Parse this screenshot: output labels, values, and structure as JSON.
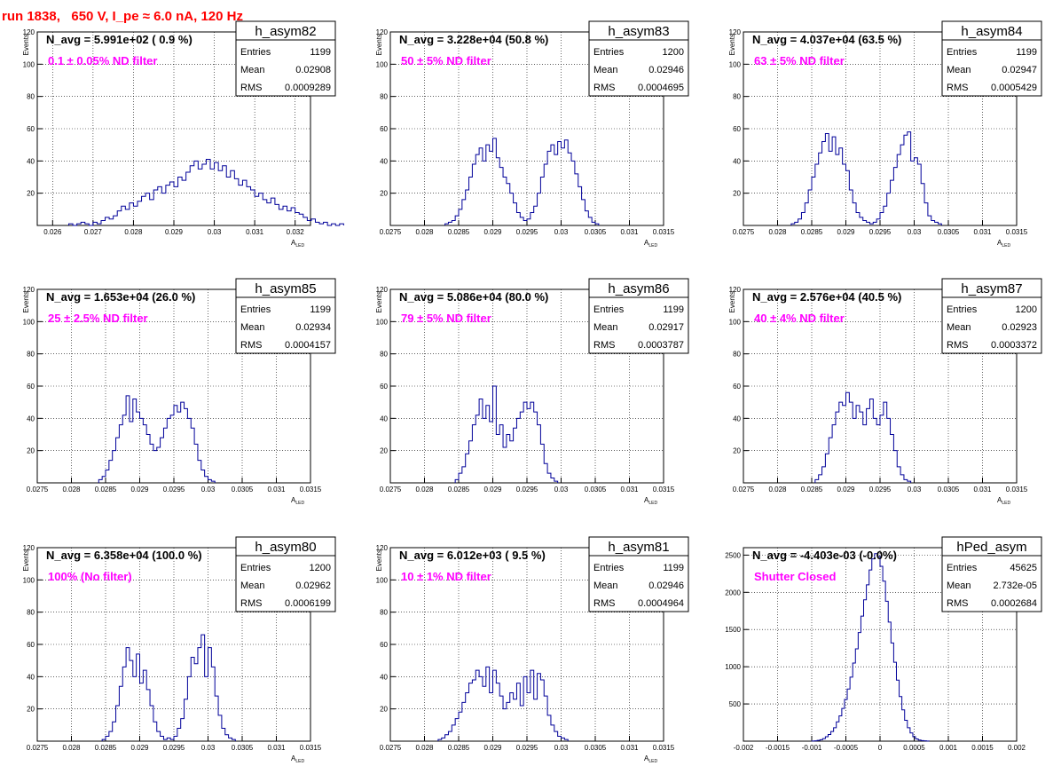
{
  "run_title": "run 1838,   650 V, I_pe ≈ 6.0 nA, 120 Hz",
  "stats_labels": {
    "entries": "Entries",
    "mean": "Mean",
    "rms": "RMS"
  },
  "colors": {
    "histogram": "#000099",
    "annotation": "#ff00ff",
    "title": "#ff0000",
    "grid": "#000000"
  },
  "chart_data": [
    {
      "type": "bar",
      "name": "h_asym82",
      "n_avg": "N_avg = 5.991e+02 ( 0.9 %)",
      "filter": "0.1 ± 0.05% ND filter",
      "entries": "1199",
      "mean": "0.02908",
      "rms": "0.0009289",
      "xlabel": "A",
      "xlabel_sub": "LED",
      "ylabel": "Events",
      "xlim": [
        0.02562,
        0.03238
      ],
      "ylim": [
        0,
        120
      ],
      "xticks": [
        0.026,
        0.027,
        0.028,
        0.029,
        0.03,
        0.031,
        0.032
      ],
      "xtick_labels": [
        "0.026",
        "0.027",
        "0.028",
        "0.029",
        "0.03",
        "0.031",
        "0.032"
      ],
      "yticks": [
        20,
        40,
        60,
        80,
        100,
        120
      ],
      "ytick_labels": [
        "20",
        "40",
        "60",
        "80",
        "100",
        "120"
      ],
      "bin_start": 0.0264,
      "bin_width": 0.0001,
      "counts": [
        1,
        0,
        1,
        2,
        1,
        0,
        2,
        1,
        3,
        5,
        4,
        6,
        9,
        12,
        10,
        14,
        12,
        15,
        18,
        20,
        16,
        22,
        24,
        20,
        25,
        27,
        24,
        30,
        28,
        33,
        37,
        40,
        35,
        38,
        41,
        35,
        39,
        34,
        37,
        30,
        34,
        29,
        25,
        28,
        24,
        22,
        18,
        20,
        16,
        14,
        17,
        13,
        10,
        12,
        9,
        11,
        8,
        7,
        5,
        3,
        4,
        2,
        1,
        2,
        0,
        1,
        0,
        1
      ]
    },
    {
      "type": "bar",
      "name": "h_asym83",
      "n_avg": "N_avg = 3.228e+04 (50.8 %)",
      "filter": "50 ± 5% ND filter",
      "entries": "1200",
      "mean": "0.02946",
      "rms": "0.0004695",
      "xlabel": "A",
      "xlabel_sub": "LED",
      "ylabel": "Events",
      "xlim": [
        0.0275,
        0.0315
      ],
      "ylim": [
        0,
        120
      ],
      "xticks": [
        0.0275,
        0.028,
        0.0285,
        0.029,
        0.0295,
        0.03,
        0.0305,
        0.031,
        0.0315
      ],
      "xtick_labels": [
        "0.0275",
        "0.028",
        "0.0285",
        "0.029",
        "0.0295",
        "0.03",
        "0.0305",
        "0.031",
        "0.0315"
      ],
      "yticks": [
        20,
        40,
        60,
        80,
        100,
        120
      ],
      "ytick_labels": [
        "20",
        "40",
        "60",
        "80",
        "100",
        "120"
      ],
      "bin_start": 0.0283,
      "bin_width": 5e-05,
      "counts": [
        1,
        2,
        3,
        6,
        10,
        16,
        22,
        30,
        38,
        44,
        48,
        40,
        50,
        46,
        54,
        42,
        36,
        30,
        26,
        20,
        14,
        8,
        5,
        3,
        4,
        8,
        12,
        20,
        30,
        38,
        46,
        50,
        44,
        52,
        48,
        53,
        45,
        40,
        32,
        24,
        16,
        9,
        5,
        2,
        1
      ]
    },
    {
      "type": "bar",
      "name": "h_asym84",
      "n_avg": "N_avg = 4.037e+04 (63.5 %)",
      "filter": "63 ± 5% ND filter",
      "entries": "1199",
      "mean": "0.02947",
      "rms": "0.0005429",
      "xlabel": "A",
      "xlabel_sub": "LED",
      "ylabel": "Events",
      "xlim": [
        0.0275,
        0.0315
      ],
      "ylim": [
        0,
        120
      ],
      "xticks": [
        0.0275,
        0.028,
        0.0285,
        0.029,
        0.0295,
        0.03,
        0.0305,
        0.031,
        0.0315
      ],
      "xtick_labels": [
        "0.0275",
        "0.028",
        "0.0285",
        "0.029",
        "0.0295",
        "0.03",
        "0.0305",
        "0.031",
        "0.0315"
      ],
      "yticks": [
        20,
        40,
        60,
        80,
        100,
        120
      ],
      "ytick_labels": [
        "20",
        "40",
        "60",
        "80",
        "100",
        "120"
      ],
      "bin_start": 0.0282,
      "bin_width": 5e-05,
      "counts": [
        1,
        2,
        4,
        8,
        14,
        22,
        30,
        38,
        45,
        52,
        57,
        46,
        55,
        44,
        48,
        38,
        34,
        22,
        14,
        8,
        5,
        3,
        2,
        1,
        2,
        4,
        8,
        12,
        20,
        28,
        36,
        44,
        50,
        56,
        58,
        40,
        42,
        38,
        26,
        14,
        6,
        3,
        2,
        1
      ]
    },
    {
      "type": "bar",
      "name": "h_asym85",
      "n_avg": "N_avg = 1.653e+04 (26.0 %)",
      "filter": "25 ± 2.5% ND filter",
      "entries": "1199",
      "mean": "0.02934",
      "rms": "0.0004157",
      "xlabel": "A",
      "xlabel_sub": "LED",
      "ylabel": "Events",
      "xlim": [
        0.0275,
        0.0315
      ],
      "ylim": [
        0,
        120
      ],
      "xticks": [
        0.0275,
        0.028,
        0.0285,
        0.029,
        0.0295,
        0.03,
        0.0305,
        0.031,
        0.0315
      ],
      "xtick_labels": [
        "0.0275",
        "0.028",
        "0.0285",
        "0.029",
        "0.0295",
        "0.03",
        "0.0305",
        "0.031",
        "0.0315"
      ],
      "yticks": [
        20,
        40,
        60,
        80,
        100,
        120
      ],
      "ytick_labels": [
        "20",
        "40",
        "60",
        "80",
        "100",
        "120"
      ],
      "bin_start": 0.0284,
      "bin_width": 5e-05,
      "counts": [
        2,
        4,
        8,
        14,
        20,
        28,
        36,
        42,
        54,
        38,
        52,
        44,
        40,
        36,
        30,
        24,
        20,
        22,
        28,
        34,
        40,
        42,
        48,
        44,
        50,
        46,
        40,
        34,
        24,
        14,
        8,
        4,
        2,
        1
      ]
    },
    {
      "type": "bar",
      "name": "h_asym86",
      "n_avg": "N_avg = 5.086e+04 (80.0 %)",
      "filter": "79 ± 5% ND filter",
      "entries": "1199",
      "mean": "0.02917",
      "rms": "0.0003787",
      "xlabel": "A",
      "xlabel_sub": "LED",
      "ylabel": "Events",
      "xlim": [
        0.0275,
        0.0315
      ],
      "ylim": [
        0,
        120
      ],
      "xticks": [
        0.0275,
        0.028,
        0.0285,
        0.029,
        0.0295,
        0.03,
        0.0305,
        0.031,
        0.0315
      ],
      "xtick_labels": [
        "0.0275",
        "0.028",
        "0.0285",
        "0.029",
        "0.0295",
        "0.03",
        "0.0305",
        "0.031",
        "0.0315"
      ],
      "yticks": [
        20,
        40,
        60,
        80,
        100,
        120
      ],
      "ytick_labels": [
        "20",
        "40",
        "60",
        "80",
        "100",
        "120"
      ],
      "bin_start": 0.02845,
      "bin_width": 5e-05,
      "counts": [
        2,
        6,
        10,
        18,
        26,
        36,
        42,
        52,
        40,
        48,
        38,
        60,
        30,
        36,
        22,
        30,
        26,
        34,
        40,
        44,
        50,
        46,
        50,
        44,
        36,
        24,
        12,
        6,
        3,
        1
      ]
    },
    {
      "type": "bar",
      "name": "h_asym87",
      "n_avg": "N_avg = 2.576e+04 (40.5 %)",
      "filter": "40 ± 4% ND filter",
      "entries": "1200",
      "mean": "0.02923",
      "rms": "0.0003372",
      "xlabel": "A",
      "xlabel_sub": "LED",
      "ylabel": "Events",
      "xlim": [
        0.0275,
        0.0315
      ],
      "ylim": [
        0,
        120
      ],
      "xticks": [
        0.0275,
        0.028,
        0.0285,
        0.029,
        0.0295,
        0.03,
        0.0305,
        0.031,
        0.0315
      ],
      "xtick_labels": [
        "0.0275",
        "0.028",
        "0.0285",
        "0.029",
        "0.0295",
        "0.03",
        "0.0305",
        "0.031",
        "0.0315"
      ],
      "yticks": [
        20,
        40,
        60,
        80,
        100,
        120
      ],
      "ytick_labels": [
        "20",
        "40",
        "60",
        "80",
        "100",
        "120"
      ],
      "bin_start": 0.02855,
      "bin_width": 5e-05,
      "counts": [
        2,
        5,
        10,
        18,
        28,
        36,
        44,
        50,
        48,
        56,
        50,
        40,
        48,
        44,
        36,
        46,
        52,
        40,
        36,
        42,
        50,
        40,
        30,
        20,
        10,
        5,
        2,
        1
      ]
    },
    {
      "type": "bar",
      "name": "h_asym80",
      "n_avg": "N_avg = 6.358e+04 (100.0 %)",
      "filter": "100% (No filter)",
      "entries": "1200",
      "mean": "0.02962",
      "rms": "0.0006199",
      "xlabel": "A",
      "xlabel_sub": "LED",
      "ylabel": "Events",
      "xlim": [
        0.0275,
        0.0315
      ],
      "ylim": [
        0,
        120
      ],
      "xticks": [
        0.0275,
        0.028,
        0.0285,
        0.029,
        0.0295,
        0.03,
        0.0305,
        0.031,
        0.0315
      ],
      "xtick_labels": [
        "0.0275",
        "0.028",
        "0.0285",
        "0.029",
        "0.0295",
        "0.03",
        "0.0305",
        "0.031",
        "0.0315"
      ],
      "yticks": [
        20,
        40,
        60,
        80,
        100,
        120
      ],
      "ytick_labels": [
        "20",
        "40",
        "60",
        "80",
        "100",
        "120"
      ],
      "bin_start": 0.02845,
      "bin_width": 5e-05,
      "counts": [
        1,
        3,
        6,
        12,
        22,
        34,
        46,
        58,
        50,
        40,
        54,
        36,
        44,
        32,
        22,
        12,
        6,
        3,
        1,
        2,
        1,
        3,
        8,
        14,
        26,
        40,
        52,
        48,
        58,
        66,
        40,
        58,
        46,
        28,
        16,
        8,
        4,
        2,
        1
      ]
    },
    {
      "type": "bar",
      "name": "h_asym81",
      "n_avg": "N_avg = 6.012e+03 ( 9.5 %)",
      "filter": "10 ± 1% ND filter",
      "entries": "1199",
      "mean": "0.02946",
      "rms": "0.0004964",
      "xlabel": "A",
      "xlabel_sub": "LED",
      "ylabel": "Events",
      "xlim": [
        0.0275,
        0.0315
      ],
      "ylim": [
        0,
        120
      ],
      "xticks": [
        0.0275,
        0.028,
        0.0285,
        0.029,
        0.0295,
        0.03,
        0.0305,
        0.031,
        0.0315
      ],
      "xtick_labels": [
        "0.0275",
        "0.028",
        "0.0285",
        "0.029",
        "0.0295",
        "0.03",
        "0.0305",
        "0.031",
        "0.0315"
      ],
      "yticks": [
        20,
        40,
        60,
        80,
        100,
        120
      ],
      "ytick_labels": [
        "20",
        "40",
        "60",
        "80",
        "100",
        "120"
      ],
      "bin_start": 0.0282,
      "bin_width": 5e-05,
      "counts": [
        1,
        2,
        4,
        6,
        10,
        14,
        18,
        24,
        30,
        36,
        38,
        44,
        40,
        34,
        46,
        30,
        44,
        36,
        28,
        20,
        24,
        30,
        26,
        36,
        22,
        40,
        30,
        44,
        26,
        42,
        38,
        28,
        16,
        10,
        6,
        3,
        2,
        1
      ]
    },
    {
      "type": "bar",
      "name": "hPed_asym",
      "n_avg": "N_avg = -4.403e-03 (-0.0%)",
      "filter": "Shutter Closed",
      "entries": "45625",
      "mean": "2.732e-05",
      "rms": "0.0002684",
      "xlabel": "",
      "xlabel_sub": "",
      "ylabel": "",
      "xlim": [
        -0.002,
        0.002
      ],
      "ylim": [
        0,
        2600
      ],
      "xticks": [
        -0.002,
        -0.0015,
        -0.001,
        -0.0005,
        0,
        0.0005,
        0.001,
        0.0015,
        0.002
      ],
      "xtick_labels": [
        "-0.002",
        "-0.0015",
        "-0.001",
        "-0.0005",
        "0",
        "0.0005",
        "0.001",
        "0.0015",
        "0.002"
      ],
      "yticks": [
        500,
        1000,
        1500,
        2000,
        2500
      ],
      "ytick_labels": [
        "500",
        "1000",
        "1500",
        "2000",
        "2500"
      ],
      "bin_start": -0.001,
      "bin_width": 4e-05,
      "counts": [
        2,
        5,
        10,
        20,
        35,
        60,
        90,
        130,
        180,
        260,
        340,
        440,
        560,
        700,
        860,
        1050,
        1240,
        1460,
        1680,
        1900,
        2100,
        2300,
        2450,
        2520,
        2480,
        2350,
        2150,
        1880,
        1600,
        1320,
        1060,
        820,
        600,
        420,
        280,
        180,
        110,
        60,
        30,
        15,
        8,
        4,
        2
      ]
    }
  ]
}
